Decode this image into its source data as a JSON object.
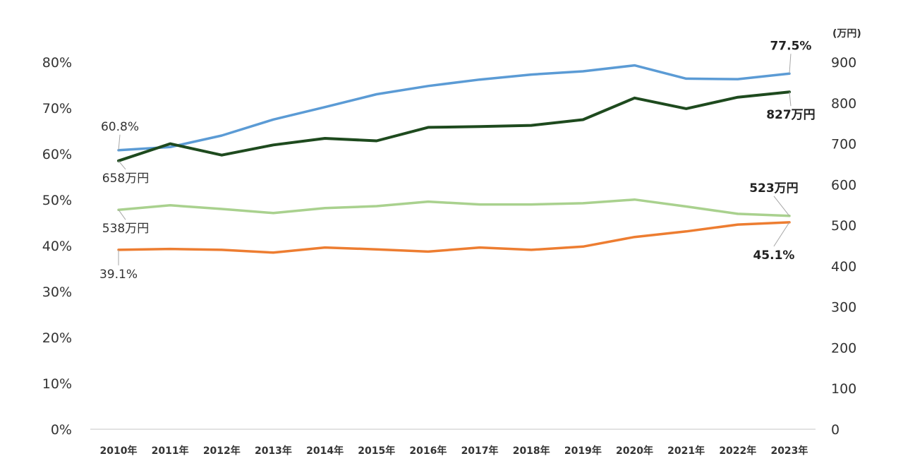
{
  "chart_data": {
    "type": "line",
    "categories": [
      "2010年",
      "2011年",
      "2012年",
      "2013年",
      "2014年",
      "2015年",
      "2016年",
      "2017年",
      "2018年",
      "2019年",
      "2020年",
      "2021年",
      "2022年",
      "2023年"
    ],
    "y_left": {
      "ticks": [
        "0%",
        "10%",
        "20%",
        "30%",
        "40%",
        "50%",
        "60%",
        "70%",
        "80%"
      ],
      "range": [
        0,
        80
      ]
    },
    "y_right": {
      "unit": "(万円)",
      "ticks": [
        "0",
        "100",
        "200",
        "300",
        "400",
        "500",
        "600",
        "700",
        "800",
        "900"
      ],
      "range": [
        0,
        900
      ]
    },
    "grid": false,
    "legend": "none",
    "series": [
      {
        "axis": "left",
        "color": "#5b9bd5",
        "values": [
          60.8,
          61.5,
          64.0,
          67.5,
          70.2,
          73.0,
          74.8,
          76.2,
          77.3,
          78.0,
          79.3,
          76.4,
          76.3,
          77.5
        ]
      },
      {
        "axis": "right",
        "color": "#1e4a1e",
        "values": [
          658,
          700,
          672,
          697,
          713,
          707,
          740,
          742,
          745,
          759,
          812,
          786,
          814,
          827
        ]
      },
      {
        "axis": "right",
        "color": "#a9d18e",
        "values": [
          538,
          549,
          540,
          530,
          542,
          547,
          558,
          551,
          551,
          554,
          563,
          546,
          528,
          523
        ]
      },
      {
        "axis": "left",
        "color": "#ed7d31",
        "values": [
          39.1,
          39.3,
          39.1,
          38.5,
          39.6,
          39.2,
          38.7,
          39.6,
          39.1,
          39.8,
          41.9,
          43.1,
          44.6,
          45.1
        ]
      }
    ],
    "annotations": [
      {
        "text": "60.8%",
        "series": 0,
        "point": 0,
        "bold": false
      },
      {
        "text": "77.5%",
        "series": 0,
        "point": 13,
        "bold": true
      },
      {
        "text": "658万円",
        "series": 1,
        "point": 0,
        "bold": false
      },
      {
        "text": "827万円",
        "series": 1,
        "point": 13,
        "bold": true
      },
      {
        "text": "538万円",
        "series": 2,
        "point": 0,
        "bold": false
      },
      {
        "text": "523万円",
        "series": 2,
        "point": 13,
        "bold": true
      },
      {
        "text": "39.1%",
        "series": 3,
        "point": 0,
        "bold": false
      },
      {
        "text": "45.1%",
        "series": 3,
        "point": 13,
        "bold": true
      }
    ]
  }
}
